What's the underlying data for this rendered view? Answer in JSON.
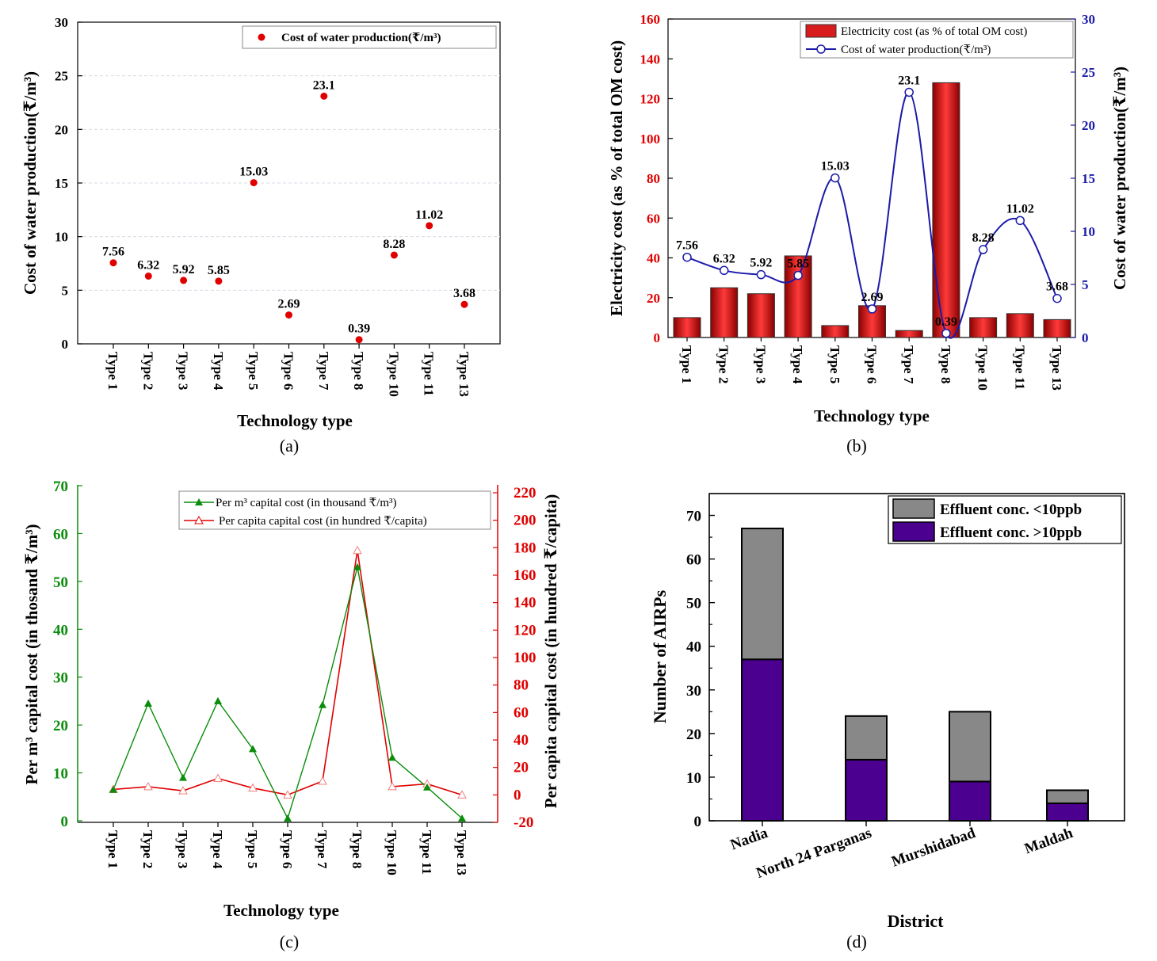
{
  "colors": {
    "red": "#e00000",
    "blue": "#1a1aa8",
    "green": "#0b8c0b",
    "gray": "#888888",
    "purple": "#4b0090"
  },
  "chart_data": [
    {
      "id": "a",
      "type": "scatter",
      "panel_label": "(a)",
      "categories": [
        "Type 1",
        "Type 2",
        "Type 3",
        "Type 4",
        "Type 5",
        "Type 6",
        "Type 7",
        "Type 8",
        "Type 10",
        "Type 11",
        "Type 13"
      ],
      "series": [
        {
          "name": "Cost of water production(₹/m³)",
          "values": [
            7.56,
            6.32,
            5.92,
            5.85,
            15.03,
            2.69,
            23.1,
            0.39,
            8.28,
            11.02,
            3.68
          ]
        }
      ],
      "data_labels": [
        "7.56",
        "6.32",
        "5.92",
        "5.85",
        "15.03",
        "2.69",
        "23.1",
        "0.39",
        "8.28",
        "11.02",
        "3.68"
      ],
      "xlabel": "Technology type",
      "ylabel": "Cost of water production(₹/m³)",
      "ylim": [
        0,
        30
      ],
      "yticks": [
        "0",
        "5",
        "10",
        "15",
        "20",
        "25",
        "30"
      ],
      "grid": true,
      "legend_position": "top-right"
    },
    {
      "id": "b",
      "type": "bar+line",
      "panel_label": "(b)",
      "categories": [
        "Type 1",
        "Type 2",
        "Type 3",
        "Type 4",
        "Type 5",
        "Type 6",
        "Type 7",
        "Type 8",
        "Type 10",
        "Type 11",
        "Type 13"
      ],
      "series": [
        {
          "name": "Electricity cost (as % of total OM cost)",
          "axis": "left",
          "kind": "bar",
          "values": [
            10,
            25,
            22,
            41,
            6,
            16,
            3.5,
            128,
            10,
            12,
            9
          ]
        },
        {
          "name": "Cost of water production(₹/m³)",
          "axis": "right",
          "kind": "line",
          "values": [
            7.56,
            6.32,
            5.92,
            5.85,
            15.03,
            2.69,
            23.1,
            0.39,
            8.28,
            11.02,
            3.68
          ]
        }
      ],
      "data_labels": [
        "7.56",
        "6.32",
        "5.92",
        "5.85",
        "15.03",
        "2.69",
        "23.1",
        "0.39",
        "8.28",
        "11.02",
        "3.68"
      ],
      "xlabel": "Technology type",
      "ylabel": "Electricity cost (as % of total OM cost)",
      "ylabel_right": "Cost of water production(₹/m³)",
      "ylim": [
        0,
        160
      ],
      "yticks": [
        "0",
        "20",
        "40",
        "60",
        "80",
        "100",
        "120",
        "140",
        "160"
      ],
      "ylim_right": [
        0,
        30
      ],
      "yticks_right": [
        "0",
        "5",
        "10",
        "15",
        "20",
        "25",
        "30"
      ],
      "legend_position": "top-right"
    },
    {
      "id": "c",
      "type": "line",
      "panel_label": "(c)",
      "categories": [
        "Type 1",
        "Type 2",
        "Type 3",
        "Type 4",
        "Type 5",
        "Type 6",
        "Type 7",
        "Type 8",
        "Type 10",
        "Type 11",
        "Type 13"
      ],
      "series": [
        {
          "name": "Per m³ capital cost (in thousand ₹/m³)",
          "axis": "left",
          "values": [
            6.5,
            24.5,
            9,
            25,
            15,
            0.5,
            24.2,
            53,
            13.2,
            7,
            0.5
          ]
        },
        {
          "name": "Per capita capital cost (in hundred  ₹/capita)",
          "axis": "right",
          "values": [
            4,
            6,
            3,
            12,
            5,
            0,
            10,
            178,
            6,
            8,
            0
          ]
        }
      ],
      "xlabel": "Technology type",
      "ylabel": "Per m³ capital cost (in thosand ₹/m³)",
      "ylabel_right": "Per capita capital cost (in hundred  ₹/capita)",
      "ylim": [
        0,
        70
      ],
      "yticks": [
        "0",
        "10",
        "20",
        "30",
        "40",
        "50",
        "60",
        "70"
      ],
      "ylim_right": [
        -20,
        220
      ],
      "yticks_right": [
        "-20",
        "0",
        "20",
        "40",
        "60",
        "80",
        "100",
        "120",
        "140",
        "160",
        "180",
        "200",
        "220"
      ],
      "legend_position": "top-right"
    },
    {
      "id": "d",
      "type": "bar",
      "stacked": true,
      "panel_label": "(d)",
      "categories": [
        "Nadia",
        "North 24 Parganas",
        "Murshidabad",
        "Maldah"
      ],
      "series": [
        {
          "name": "Effluent conc. >10ppb",
          "values": [
            37,
            14,
            9,
            4
          ]
        },
        {
          "name": "Effluent conc. <10ppb",
          "values": [
            30,
            10,
            16,
            3
          ]
        }
      ],
      "xlabel": "District",
      "ylabel": "Number of AIRPs",
      "ylim": [
        0,
        75
      ],
      "yticks": [
        "0",
        "10",
        "20",
        "30",
        "40",
        "50",
        "60",
        "70"
      ],
      "legend_position": "top-right"
    }
  ]
}
